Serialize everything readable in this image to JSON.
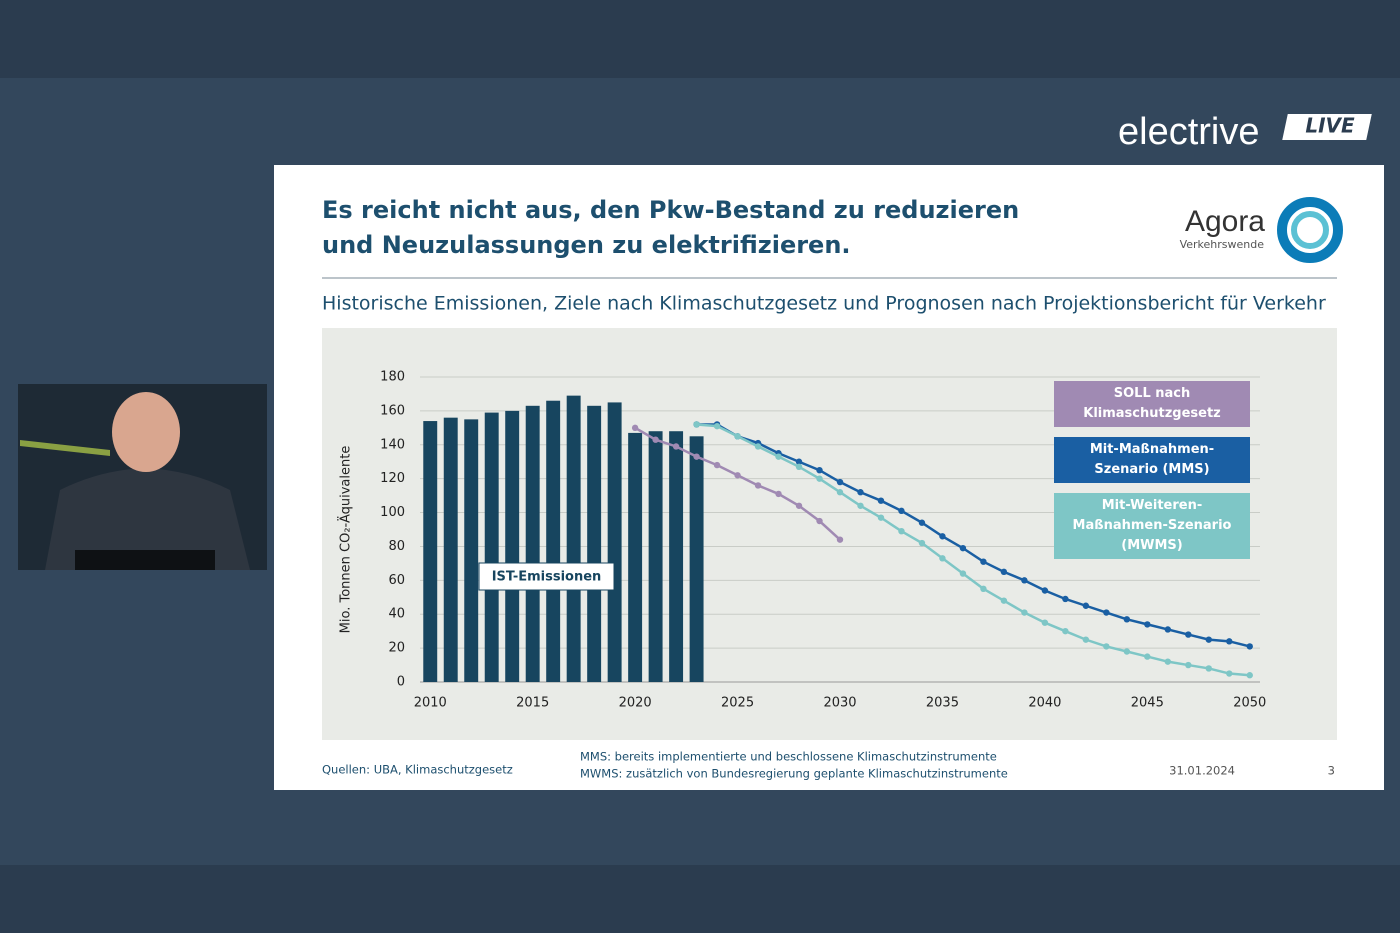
{
  "brand": {
    "name": "electrive",
    "badge": "LIVE"
  },
  "slide": {
    "title": [
      "Es reicht nicht aus, den Pkw-Bestand zu reduzieren",
      "und Neuzulassungen zu elektrifizieren."
    ],
    "logo": {
      "name": "Agora",
      "sub": "Verkehrswende"
    },
    "subtitle": "Historische Emissionen, Ziele nach Klimaschutzgesetz und Prognosen nach Projektionsbericht für Verkehr",
    "source": "Quellen: UBA, Klimaschutzgesetz",
    "notes": [
      "MMS: bereits implementierte und beschlossene Klimaschutzinstrumente",
      "MWMS: zusätzlich von Bundesregierung geplante Klimaschutzinstrumente"
    ],
    "date": "31.01.2024",
    "page": "3"
  },
  "chart_data": {
    "type": "combo",
    "ylabel": "Mio. Tonnen CO₂-Äquivalente",
    "xlim": [
      2009.5,
      2050.5
    ],
    "xticks": [
      2010,
      2015,
      2020,
      2025,
      2030,
      2035,
      2040,
      2045,
      2050
    ],
    "ylim": [
      0,
      180
    ],
    "yticks": [
      0,
      20,
      40,
      60,
      80,
      100,
      120,
      140,
      160,
      180
    ],
    "grid": true,
    "series": [
      {
        "name": "IST-Emissionen",
        "type": "bar",
        "color": "#17455f",
        "x": [
          2010,
          2011,
          2012,
          2013,
          2014,
          2015,
          2016,
          2017,
          2018,
          2019,
          2020,
          2021,
          2022,
          2023
        ],
        "values": [
          154,
          156,
          155,
          159,
          160,
          163,
          166,
          169,
          163,
          165,
          147,
          148,
          148,
          145
        ]
      },
      {
        "name": "SOLL nach Klimaschutzgesetz",
        "type": "line",
        "color": "#a08ab3",
        "x": [
          2020,
          2021,
          2022,
          2023,
          2024,
          2025,
          2026,
          2027,
          2028,
          2029,
          2030
        ],
        "values": [
          150,
          143,
          139,
          133,
          128,
          122,
          116,
          111,
          104,
          95,
          84
        ]
      },
      {
        "name": "Mit-Maßnahmen-Szenario (MMS)",
        "type": "line",
        "color": "#1a5fa3",
        "x": [
          2023,
          2024,
          2025,
          2026,
          2027,
          2028,
          2029,
          2030,
          2031,
          2032,
          2033,
          2034,
          2035,
          2036,
          2037,
          2038,
          2039,
          2040,
          2041,
          2042,
          2043,
          2044,
          2045,
          2046,
          2047,
          2048,
          2049,
          2050
        ],
        "values": [
          152,
          152,
          145,
          141,
          135,
          130,
          125,
          118,
          112,
          107,
          101,
          94,
          86,
          79,
          71,
          65,
          60,
          54,
          49,
          45,
          41,
          37,
          34,
          31,
          28,
          25,
          24,
          21
        ]
      },
      {
        "name": "Mit-Weiteren-Maßnahmen-Szenario (MWMS)",
        "type": "line",
        "color": "#7ec6c6",
        "x": [
          2023,
          2024,
          2025,
          2026,
          2027,
          2028,
          2029,
          2030,
          2031,
          2032,
          2033,
          2034,
          2035,
          2036,
          2037,
          2038,
          2039,
          2040,
          2041,
          2042,
          2043,
          2044,
          2045,
          2046,
          2047,
          2048,
          2049,
          2050
        ],
        "values": [
          152,
          151,
          145,
          139,
          133,
          127,
          120,
          112,
          104,
          97,
          89,
          82,
          73,
          64,
          55,
          48,
          41,
          35,
          30,
          25,
          21,
          18,
          15,
          12,
          10,
          8,
          5,
          4
        ]
      }
    ]
  }
}
